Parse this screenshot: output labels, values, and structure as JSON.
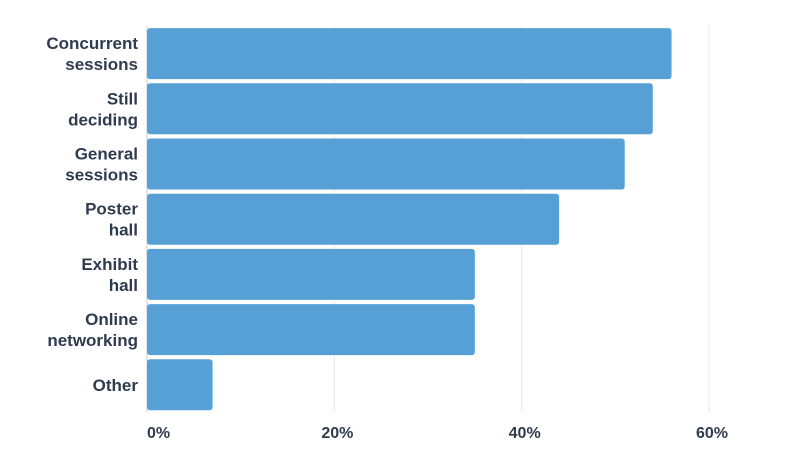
{
  "chart_data": {
    "type": "bar",
    "orientation": "horizontal",
    "categories": [
      [
        "Concurrent",
        "sessions"
      ],
      [
        "Still",
        "deciding"
      ],
      [
        "General",
        "sessions"
      ],
      [
        "Poster",
        "hall"
      ],
      [
        "Exhibit",
        "hall"
      ],
      [
        "Online",
        "networking"
      ],
      [
        "Other"
      ]
    ],
    "values": [
      56,
      54,
      51,
      44,
      35,
      35,
      7
    ],
    "xlim": [
      0,
      60
    ],
    "xticks": [
      0,
      20,
      40,
      60
    ],
    "xtick_labels": [
      "0%",
      "20%",
      "40%",
      "60%"
    ],
    "title": "",
    "xlabel": "",
    "ylabel": "",
    "grid": true,
    "bar_color": "#56a0d6"
  }
}
